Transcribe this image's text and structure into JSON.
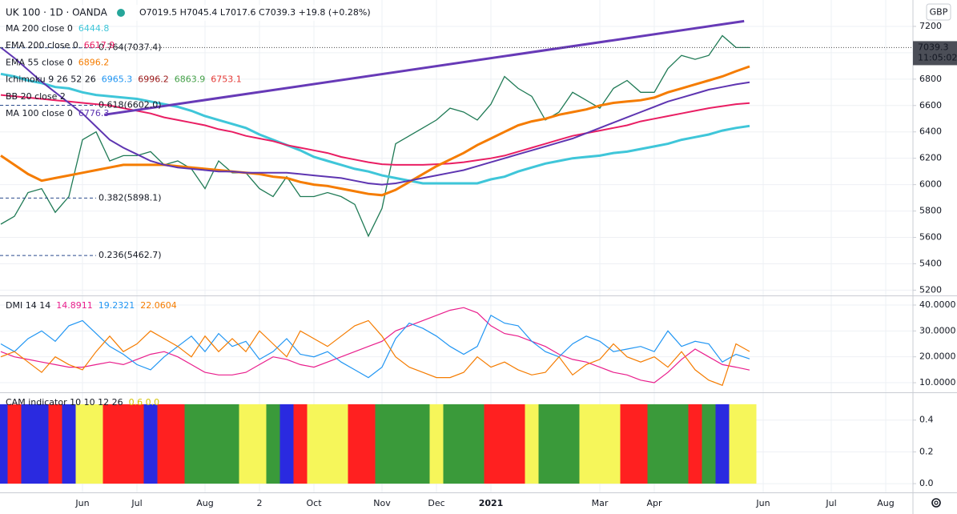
{
  "chart_data": [
    {
      "type": "line",
      "title": "UK 100 · 1D · OANDA",
      "ohlc": "O7019.5 H7045.4 L7017.6 C7039.3 +19.8 (+0.28%)",
      "currency": "GBP",
      "last_price": 7039.3,
      "countdown": "11:05:02",
      "grid": true,
      "color": "#1f7a55",
      "categories": [
        null,
        null,
        null,
        null,
        null,
        null,
        "Jun",
        null,
        null,
        null,
        "Jul",
        null,
        null,
        null,
        null,
        "Aug",
        null,
        null,
        null,
        "2",
        null,
        null,
        null,
        "Oct",
        null,
        null,
        null,
        null,
        "Nov",
        null,
        null,
        null,
        "Dec",
        null,
        null,
        null,
        "2021",
        null,
        null,
        null,
        null,
        null,
        null,
        null,
        "Mar",
        null,
        null,
        null,
        "Apr",
        null,
        null,
        null,
        null,
        null,
        null,
        null,
        "Jun",
        null,
        null,
        null,
        null,
        "Jul",
        null,
        null,
        null,
        "Aug",
        null
      ],
      "values": [
        5700,
        5760,
        5940,
        5970,
        5790,
        5910,
        6340,
        6400,
        6180,
        6220,
        6220,
        6250,
        6150,
        6180,
        6120,
        5970,
        6180,
        6090,
        6090,
        5970,
        5910,
        6060,
        5910,
        5910,
        5940,
        5910,
        5850,
        5610,
        5820,
        6310,
        6370,
        6430,
        6490,
        6580,
        6550,
        6490,
        6610,
        6820,
        6730,
        6670,
        6490,
        6550,
        6700,
        6640,
        6580,
        6730,
        6790,
        6700,
        6700,
        6880,
        6980,
        6950,
        6980,
        7130,
        7040,
        7039.3,
        null,
        null,
        null,
        null,
        null,
        null,
        null,
        null,
        null,
        null,
        null
      ],
      "series": [
        {
          "name": "MA 200 close 0",
          "color": "#3fc6d9",
          "last": 6444.8,
          "values": [
            6840,
            6820,
            6790,
            6770,
            6740,
            6730,
            6700,
            6680,
            6670,
            6660,
            6650,
            6630,
            6610,
            6590,
            6560,
            6520,
            6490,
            6460,
            6430,
            6380,
            6340,
            6300,
            6260,
            6210,
            6180,
            6150,
            6120,
            6100,
            6070,
            6050,
            6030,
            6010,
            6010,
            6010,
            6010,
            6010,
            6040,
            6060,
            6100,
            6130,
            6160,
            6180,
            6200,
            6210,
            6220,
            6240,
            6250,
            6270,
            6290,
            6310,
            6340,
            6360,
            6380,
            6410,
            6430,
            6445,
            null,
            null,
            null,
            null,
            null,
            null,
            null,
            null,
            null,
            null,
            null
          ]
        },
        {
          "name": "EMA 200 close 0",
          "color": "#e91e63",
          "last": 6617.9,
          "values": [
            6680,
            6670,
            6660,
            6650,
            6640,
            6630,
            6620,
            6610,
            6600,
            6580,
            6560,
            6540,
            6510,
            6490,
            6470,
            6450,
            6420,
            6400,
            6370,
            6350,
            6330,
            6300,
            6280,
            6260,
            6240,
            6210,
            6190,
            6170,
            6155,
            6150,
            6150,
            6150,
            6155,
            6160,
            6170,
            6185,
            6200,
            6220,
            6250,
            6280,
            6310,
            6340,
            6370,
            6390,
            6410,
            6430,
            6450,
            6480,
            6500,
            6520,
            6540,
            6560,
            6580,
            6595,
            6610,
            6618,
            null,
            null,
            null,
            null,
            null,
            null,
            null,
            null,
            null,
            null,
            null
          ]
        },
        {
          "name": "EMA 55 close 0",
          "color": "#f57c00",
          "last": 6896.2,
          "values": [
            6220,
            6150,
            6080,
            6030,
            6050,
            6070,
            6090,
            6110,
            6130,
            6150,
            6150,
            6150,
            6150,
            6140,
            6130,
            6120,
            6110,
            6100,
            6090,
            6080,
            6060,
            6050,
            6020,
            6000,
            5990,
            5970,
            5950,
            5930,
            5920,
            5960,
            6020,
            6080,
            6140,
            6190,
            6240,
            6300,
            6350,
            6400,
            6450,
            6480,
            6500,
            6530,
            6550,
            6570,
            6600,
            6620,
            6630,
            6640,
            6660,
            6700,
            6730,
            6760,
            6790,
            6820,
            6860,
            6896,
            null,
            null,
            null,
            null,
            null,
            null,
            null,
            null,
            null,
            null,
            null
          ]
        },
        {
          "name": "MA 100 close 0",
          "color": "#5e35b1",
          "last": 6776.3,
          "values": [
            7040,
            6960,
            6870,
            6780,
            6700,
            6620,
            6540,
            6440,
            6340,
            6280,
            6230,
            6180,
            6150,
            6130,
            6120,
            6110,
            6100,
            6100,
            6090,
            6090,
            6090,
            6090,
            6080,
            6070,
            6060,
            6050,
            6030,
            6010,
            6000,
            6010,
            6030,
            6050,
            6070,
            6090,
            6110,
            6140,
            6170,
            6200,
            6230,
            6260,
            6290,
            6320,
            6350,
            6390,
            6430,
            6470,
            6510,
            6550,
            6590,
            6630,
            6660,
            6690,
            6720,
            6740,
            6760,
            6776,
            null,
            null,
            null,
            null,
            null,
            null,
            null,
            null,
            null,
            null,
            null
          ]
        }
      ],
      "indicators": [
        {
          "label": "Ichimoku 9 26 52 26",
          "values": [
            6965.3,
            6996.2,
            6863.9,
            6753.1
          ],
          "colors": [
            "#2196f3",
            "#991515",
            "#43a047",
            "#e53935"
          ]
        },
        {
          "label": "BB 20 close 2"
        }
      ],
      "trendline": [
        6530,
        7240
      ],
      "annotations": [
        {
          "text": "0.764(7037.4)",
          "y": 7037.4
        },
        {
          "text": "0.618(6602.0)",
          "y": 6602.0
        },
        {
          "text": "0.382(5898.1)",
          "y": 5898.1
        },
        {
          "text": "0.236(5462.7)",
          "y": 5462.7
        }
      ],
      "ylim": [
        5160,
        7400
      ],
      "yticks": [
        5200,
        5400,
        5600,
        5800,
        6000,
        6200,
        6400,
        6600,
        6800,
        7000,
        7200
      ]
    },
    {
      "type": "line",
      "title": "DMI 14 14",
      "grid": true,
      "series": [
        {
          "color": "#e91e8c",
          "last": 14.8911,
          "values": [
            22,
            20,
            19,
            18,
            17,
            16,
            16,
            17,
            18,
            17,
            19,
            21,
            22,
            20,
            17,
            14,
            13,
            13,
            14,
            17,
            20,
            19,
            17,
            16,
            18,
            20,
            22,
            24,
            26,
            30,
            32,
            34,
            36,
            38,
            39,
            37,
            32,
            29,
            28,
            26,
            24,
            21,
            19,
            18,
            16,
            14,
            13,
            11,
            10,
            14,
            19,
            23,
            20,
            17,
            16,
            14.8911,
            null,
            null,
            null,
            null,
            null,
            null,
            null,
            null,
            null,
            null,
            null
          ]
        },
        {
          "color": "#2196f3",
          "last": 19.2321,
          "values": [
            25,
            22,
            27,
            30,
            26,
            32,
            34,
            29,
            24,
            21,
            17,
            15,
            20,
            24,
            28,
            22,
            29,
            24,
            26,
            19,
            22,
            27,
            21,
            20,
            22,
            18,
            15,
            12,
            16,
            27,
            33,
            31,
            28,
            24,
            21,
            24,
            36,
            33,
            32,
            26,
            22,
            20,
            25,
            28,
            26,
            22,
            23,
            24,
            22,
            30,
            24,
            26,
            25,
            18,
            21,
            19.2321,
            null,
            null,
            null,
            null,
            null,
            null,
            null,
            null,
            null,
            null,
            null
          ]
        },
        {
          "color": "#f57c00",
          "last": 22.0604,
          "values": [
            20,
            22,
            18,
            14,
            20,
            17,
            15,
            22,
            28,
            22,
            25,
            30,
            27,
            24,
            20,
            28,
            22,
            27,
            22,
            30,
            25,
            20,
            30,
            27,
            24,
            28,
            32,
            34,
            28,
            20,
            16,
            14,
            12,
            12,
            14,
            20,
            16,
            18,
            15,
            13,
            14,
            20,
            13,
            17,
            19,
            25,
            20,
            18,
            20,
            16,
            22,
            15,
            11,
            9,
            25,
            22.0604,
            null,
            null,
            null,
            null,
            null,
            null,
            null,
            null,
            null,
            null,
            null
          ]
        }
      ],
      "ylim": [
        6.3,
        43.4
      ],
      "yticks": [
        {
          "value": 10,
          "label": "10.0000"
        },
        {
          "value": 20,
          "label": "20.0000"
        },
        {
          "value": 30,
          "label": "30.0000"
        },
        {
          "value": 40,
          "label": "40.0000"
        }
      ]
    },
    {
      "type": "bar",
      "title": "CAM indicator 10 10 12 26",
      "value_text": "0.6 0.0",
      "grid": true,
      "values": [
        0.5,
        0.5,
        0.5,
        0.5,
        0.5,
        0.5,
        0.5,
        0.5,
        0.5,
        0.5,
        0.5,
        0.5,
        0.5,
        0.5,
        0.5,
        0.5,
        0.5,
        0.5,
        0.5,
        0.5,
        0.5,
        0.5,
        0.5,
        0.5,
        0.5,
        0.5,
        0.5,
        0.5,
        0.5,
        0.5,
        0.5,
        0.5,
        0.5,
        0.5,
        0.5,
        0.5,
        0.5,
        0.5,
        0.5,
        0.5,
        0.5,
        0.5,
        0.5,
        0.5,
        0.5,
        0.5,
        0.5,
        0.5,
        0.5,
        0.5,
        0.5,
        0.5,
        0.5,
        0.5,
        0.5,
        0.5,
        null,
        null,
        null,
        null,
        null,
        null,
        null,
        null,
        null,
        null,
        null
      ],
      "colors": [
        "#2a2ae0",
        "#ff2020",
        "#2a2ae0",
        "#2a2ae0",
        "#ff2020",
        "#2a2ae0",
        "#f6f65a",
        "#f6f65a",
        "#ff2020",
        "#ff2020",
        "#ff2020",
        "#2a2ae0",
        "#ff2020",
        "#ff2020",
        "#3a9a3a",
        "#3a9a3a",
        "#3a9a3a",
        "#3a9a3a",
        "#f6f65a",
        "#f6f65a",
        "#3a9a3a",
        "#2a2ae0",
        "#ff2020",
        "#f6f65a",
        "#f6f65a",
        "#f6f65a",
        "#ff2020",
        "#ff2020",
        "#3a9a3a",
        "#3a9a3a",
        "#3a9a3a",
        "#3a9a3a",
        "#f6f65a",
        "#3a9a3a",
        "#3a9a3a",
        "#3a9a3a",
        "#ff2020",
        "#ff2020",
        "#ff2020",
        "#f6f65a",
        "#3a9a3a",
        "#3a9a3a",
        "#3a9a3a",
        "#f6f65a",
        "#f6f65a",
        "#f6f65a",
        "#ff2020",
        "#ff2020",
        "#3a9a3a",
        "#3a9a3a",
        "#3a9a3a",
        "#ff2020",
        "#3a9a3a",
        "#2a2ae0",
        "#f6f65a",
        "#f6f65a",
        null,
        null,
        null,
        null,
        null,
        null,
        null,
        null,
        null,
        null,
        null
      ],
      "ylim": [
        -0.055,
        0.57
      ],
      "yticks": [
        {
          "value": 0,
          "label": "0.0"
        },
        0.2,
        0.4
      ]
    }
  ]
}
